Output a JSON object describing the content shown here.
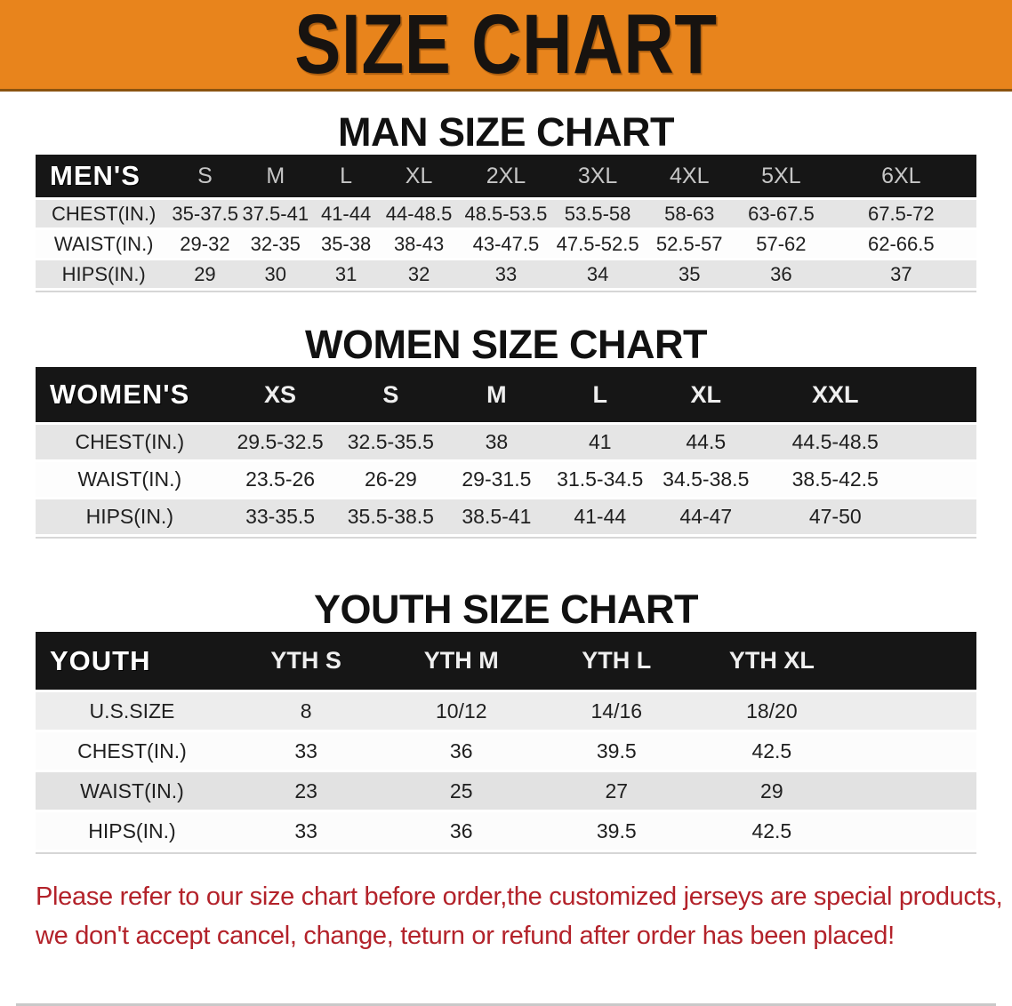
{
  "banner": {
    "title": "SIZE CHART",
    "bg_color": "#E8841C",
    "text_color": "#171310"
  },
  "sections": [
    {
      "heading": "MAN SIZE CHART",
      "group_label": "MEN'S",
      "sizes": [
        "S",
        "M",
        "L",
        "XL",
        "2XL",
        "3XL",
        "4XL",
        "5XL",
        "6XL"
      ],
      "rows": [
        {
          "label": "CHEST(IN.)",
          "values": [
            "35-37.5",
            "37.5-41",
            "41-44",
            "44-48.5",
            "48.5-53.5",
            "53.5-58",
            "58-63",
            "63-67.5",
            "67.5-72"
          ]
        },
        {
          "label": "WAIST(IN.)",
          "values": [
            "29-32",
            "32-35",
            "35-38",
            "38-43",
            "43-47.5",
            "47.5-52.5",
            "52.5-57",
            "57-62",
            "62-66.5"
          ]
        },
        {
          "label": "HIPS(IN.)",
          "values": [
            "29",
            "30",
            "31",
            "32",
            "33",
            "34",
            "35",
            "36",
            "37"
          ]
        }
      ]
    },
    {
      "heading": "WOMEN SIZE CHART",
      "group_label": "WOMEN'S",
      "sizes": [
        "XS",
        "S",
        "M",
        "L",
        "XL",
        "XXL"
      ],
      "rows": [
        {
          "label": "CHEST(IN.)",
          "values": [
            "29.5-32.5",
            "32.5-35.5",
            "38",
            "41",
            "44.5",
            "44.5-48.5"
          ]
        },
        {
          "label": "WAIST(IN.)",
          "values": [
            "23.5-26",
            "26-29",
            "29-31.5",
            "31.5-34.5",
            "34.5-38.5",
            "38.5-42.5"
          ]
        },
        {
          "label": "HIPS(IN.)",
          "values": [
            "33-35.5",
            "35.5-38.5",
            "38.5-41",
            "41-44",
            "44-47",
            "47-50"
          ]
        }
      ]
    },
    {
      "heading": "YOUTH SIZE CHART",
      "group_label": "YOUTH",
      "sizes": [
        "YTH S",
        "YTH M",
        "YTH L",
        "YTH XL"
      ],
      "rows": [
        {
          "label": "U.S.SIZE",
          "values": [
            "8",
            "10/12",
            "14/16",
            "18/20"
          ]
        },
        {
          "label": "CHEST(IN.)",
          "values": [
            "33",
            "36",
            "39.5",
            "42.5"
          ]
        },
        {
          "label": "WAIST(IN.)",
          "values": [
            "23",
            "25",
            "27",
            "29"
          ]
        },
        {
          "label": "HIPS(IN.)",
          "values": [
            "33",
            "36",
            "39.5",
            "42.5"
          ]
        }
      ]
    }
  ],
  "disclaimer": {
    "line1": "Please refer to our size chart before order,the customized jerseys are special products,",
    "line2": "we don't accept cancel, change, teturn or refund after order has been placed!",
    "color": "#B3222A"
  }
}
